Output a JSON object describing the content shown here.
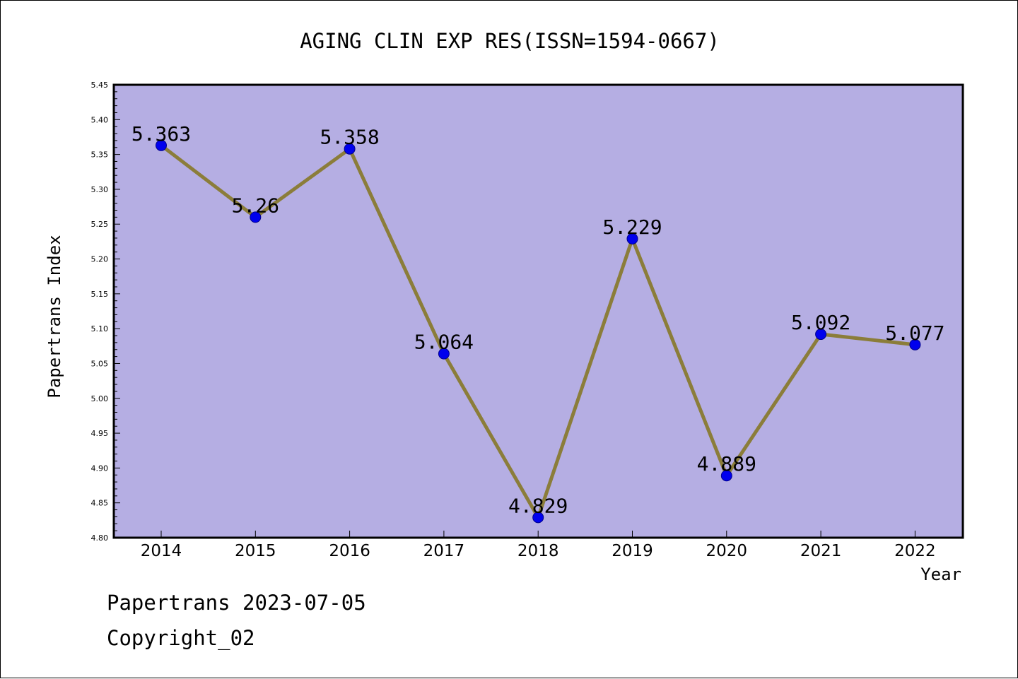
{
  "chart_data": {
    "type": "line",
    "title": "AGING CLIN EXP RES(ISSN=1594-0667)",
    "xlabel": "Year",
    "ylabel": "Papertrans Index",
    "categories": [
      "2014",
      "2015",
      "2016",
      "2017",
      "2018",
      "2019",
      "2020",
      "2021",
      "2022"
    ],
    "values": [
      5.363,
      5.26,
      5.358,
      5.064,
      4.829,
      5.229,
      4.889,
      5.092,
      5.077
    ],
    "data_labels": [
      "5.363",
      "5.26",
      "5.358",
      "5.064",
      "4.829",
      "5.229",
      "4.889",
      "5.092",
      "5.077"
    ],
    "ylim": [
      4.8,
      5.45
    ],
    "yticks": [
      "4.80",
      "4.85",
      "4.90",
      "4.95",
      "5.00",
      "5.05",
      "5.10",
      "5.15",
      "5.20",
      "5.25",
      "5.30",
      "5.35",
      "5.40",
      "5.45"
    ],
    "grid": false,
    "legend": "none",
    "colors": {
      "plot_background": "#b5aee3",
      "line": "#8b7d3a",
      "marker": "#0000ee"
    }
  },
  "footer": {
    "line1": "Papertrans 2023-07-05",
    "line2": "Copyright_02"
  }
}
